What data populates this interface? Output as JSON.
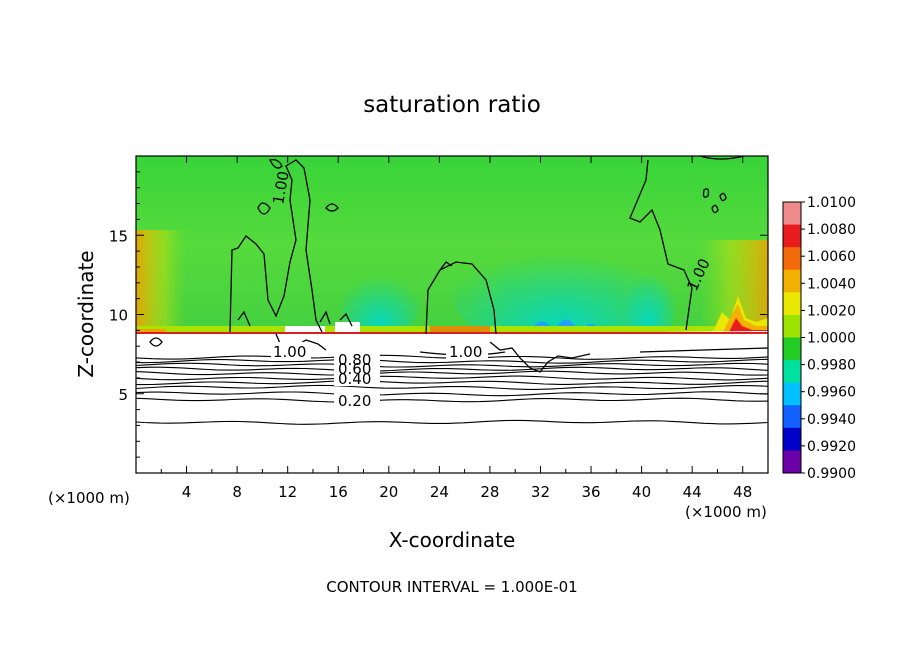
{
  "chart_data": {
    "type": "heatmap",
    "title": "saturation ratio",
    "xlabel": "X-coordinate",
    "ylabel": "Z-coordinate",
    "x_units": "(×1000 m)",
    "z_units": "(×1000 m)",
    "xlim": [
      0,
      50
    ],
    "ylim": [
      0,
      20
    ],
    "x_ticks": [
      "4",
      "8",
      "12",
      "16",
      "20",
      "24",
      "28",
      "32",
      "36",
      "40",
      "44",
      "48"
    ],
    "x_tick_values": [
      4,
      8,
      12,
      16,
      20,
      24,
      28,
      32,
      36,
      40,
      44,
      48
    ],
    "y_ticks": [
      "5",
      "10",
      "15"
    ],
    "y_tick_values": [
      5,
      10,
      15
    ],
    "footer": "CONTOUR INTERVAL = 1.000E-01",
    "colorbar": {
      "labels": [
        "1.0100",
        "1.0080",
        "1.0060",
        "1.0040",
        "1.0020",
        "1.0000",
        "0.9980",
        "0.9960",
        "0.9940",
        "0.9920",
        "0.9900"
      ],
      "values": [
        1.01,
        1.008,
        1.006,
        1.004,
        1.002,
        1.0,
        0.998,
        0.996,
        0.994,
        0.992,
        0.99
      ],
      "colors": [
        "#f08a8a",
        "#e81c1c",
        "#f26a0a",
        "#f4b000",
        "#e8e800",
        "#9ce400",
        "#22cc22",
        "#00e0a0",
        "#00c0ff",
        "#1060ff",
        "#0000c8",
        "#6a00a8"
      ]
    },
    "contour_labels": [
      {
        "text": "1.00",
        "x": 11.8,
        "z": 16.3
      },
      {
        "text": "1.00",
        "x": 43.8,
        "z": 12.8
      },
      {
        "text": "1.00",
        "x": 12.0,
        "z": 7.6
      },
      {
        "text": "1.00",
        "x": 26.0,
        "z": 7.6
      },
      {
        "text": "0.80",
        "x": 17.5,
        "z": 7.1
      },
      {
        "text": "0.60",
        "x": 17.5,
        "z": 6.6
      },
      {
        "text": "0.40",
        "x": 17.5,
        "z": 6.0
      },
      {
        "text": "0.20",
        "x": 17.5,
        "z": 4.6
      }
    ],
    "contour_levels_z": [
      7.3,
      7.05,
      6.8,
      6.55,
      6.3,
      6.0,
      5.7,
      5.4,
      5.0,
      4.6,
      3.2
    ],
    "grid": false,
    "legend": "colorbar-right"
  }
}
